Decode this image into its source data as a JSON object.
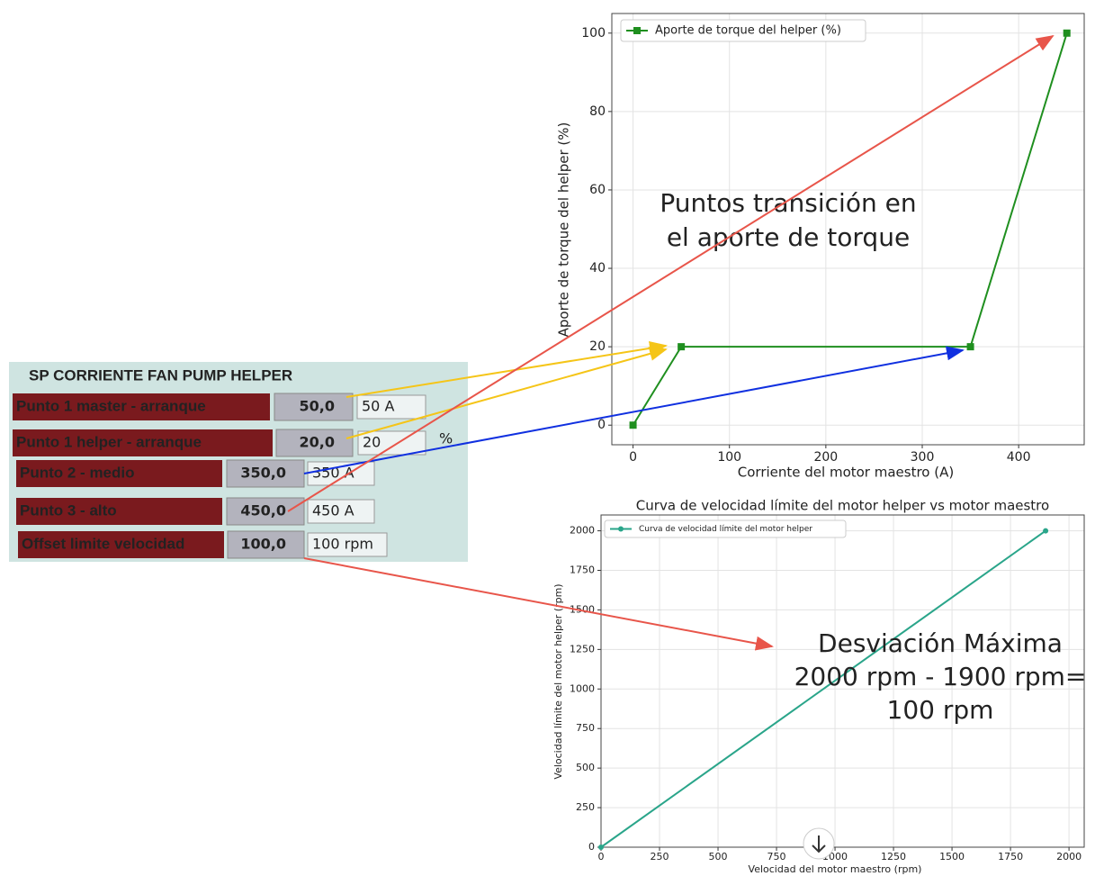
{
  "chart_data": [
    {
      "type": "line",
      "xlabel": "Corriente del motor maestro (A)",
      "ylabel": "Aporte de torque del helper (%)",
      "x": [
        0,
        50,
        350,
        450
      ],
      "series": [
        {
          "name": "Aporte de torque del helper (%)",
          "color": "#1f8f1f",
          "marker": "square",
          "values": [
            0,
            20,
            20,
            100
          ]
        }
      ],
      "xlim": [
        -22,
        468
      ],
      "ylim": [
        -5,
        105
      ],
      "xticks": [
        0,
        100,
        200,
        300,
        400
      ],
      "yticks": [
        0,
        20,
        40,
        60,
        80,
        100
      ],
      "grid": true,
      "legend": "upper left"
    },
    {
      "type": "line",
      "title": "Curva de velocidad límite del motor helper vs motor maestro",
      "xlabel": "Velocidad del motor maestro (rpm)",
      "ylabel": "Velocidad límite del motor helper (rpm)",
      "x": [
        0,
        1900
      ],
      "series": [
        {
          "name": "Curva de velocidad límite del motor helper",
          "color": "#2aa58a",
          "marker": "circle",
          "values": [
            0,
            2000
          ]
        }
      ],
      "xlim": [
        0,
        2065
      ],
      "ylim": [
        0,
        2100
      ],
      "xticks": [
        0,
        250,
        500,
        750,
        1000,
        1250,
        1500,
        1750,
        2000
      ],
      "yticks": [
        0,
        250,
        500,
        750,
        1000,
        1250,
        1500,
        1750,
        2000
      ],
      "grid": true,
      "legend": "upper left"
    }
  ],
  "panel": {
    "title": "SP CORRIENTE FAN PUMP HELPER",
    "rows": [
      {
        "label": "Punto 1 master - arranque",
        "value": "50,0",
        "unit": "50 A"
      },
      {
        "label": "Punto 1 helper - arranque",
        "value": "20,0",
        "unit": "20"
      },
      {
        "label": "Punto 2 - medio",
        "value": "350,0",
        "unit": "350 A"
      },
      {
        "label": "Punto 3 - alto",
        "value": "450,0",
        "unit": "450 A"
      },
      {
        "label": "Offset limite velocidad",
        "value": "100,0",
        "unit": "100 rpm"
      }
    ],
    "percent": "%"
  },
  "annotations": {
    "transition": [
      "Puntos transición en",
      "el aporte de torque"
    ],
    "deviation": [
      "Desviación Máxima",
      "2000 rpm - 1900 rpm=",
      "100 rpm"
    ]
  }
}
